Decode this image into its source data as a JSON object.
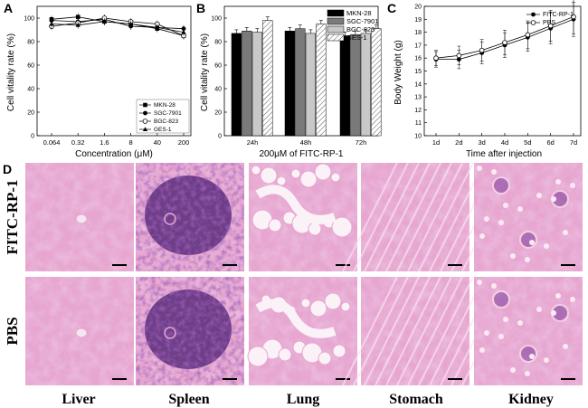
{
  "panels": {
    "a": "A",
    "b": "B",
    "c": "C",
    "d": "D"
  },
  "histology": {
    "rows": [
      "FITC-RP-1",
      "PBS"
    ],
    "columns": [
      "Liver",
      "Spleen",
      "Lung",
      "Stomach",
      "Kidney"
    ],
    "colors": {
      "pink": "#e7a6cf",
      "purple": "#7c3a9a",
      "deep": "#4c1f72",
      "light": "#f6e6f0"
    }
  },
  "chart_data": [
    {
      "type": "line",
      "panel": "A",
      "xlabel": "Concentration (μM)",
      "ylabel": "Cell vitality rate (%)",
      "categories": [
        "0.064",
        "0.32",
        "1.6",
        "8",
        "40",
        "200"
      ],
      "ylim": [
        0,
        110
      ],
      "yticks": [
        0,
        20,
        40,
        60,
        80,
        100
      ],
      "legend_position": "bottom-right",
      "series": [
        {
          "name": "MKN-28",
          "marker": "square",
          "values": [
            99,
            101,
            97,
            95,
            91,
            85
          ]
        },
        {
          "name": "SGC-7901",
          "marker": "circle",
          "values": [
            98,
            97,
            99,
            93,
            92,
            91
          ]
        },
        {
          "name": "BGC-823",
          "marker": "open-circle",
          "values": [
            93,
            96,
            100,
            97,
            95,
            85
          ]
        },
        {
          "name": "GES-1",
          "marker": "triangle",
          "values": [
            95,
            94,
            97,
            95,
            92,
            88
          ]
        }
      ]
    },
    {
      "type": "bar",
      "panel": "B",
      "xlabel": "200μM of FITC-RP-1",
      "ylabel": "Cell vitality rate (%)",
      "categories": [
        "24h",
        "48h",
        "72h"
      ],
      "ylim": [
        0,
        110
      ],
      "yticks": [
        0,
        20,
        40,
        60,
        80,
        100
      ],
      "legend_position": "top-right",
      "series": [
        {
          "name": "MKN-28",
          "fill": "#000000",
          "values": [
            87,
            89,
            85
          ]
        },
        {
          "name": "SGC-7901",
          "fill": "#7a7a7a",
          "values": [
            89,
            91,
            86
          ]
        },
        {
          "name": "BGC-823",
          "fill": "#c8c8c8",
          "values": [
            88,
            87,
            87
          ]
        },
        {
          "name": "GES-1",
          "fill": "hatched",
          "values": [
            98,
            95,
            91
          ]
        }
      ]
    },
    {
      "type": "line",
      "panel": "C",
      "xlabel": "Time after injection",
      "ylabel": "Body Weight (g)",
      "categories": [
        "1d",
        "2d",
        "3d",
        "4d",
        "5d",
        "6d",
        "7d"
      ],
      "ylim": [
        10,
        20
      ],
      "yticks": [
        10,
        11,
        12,
        13,
        14,
        15,
        16,
        17,
        18,
        19,
        20
      ],
      "legend_position": "top-right",
      "series": [
        {
          "name": "FITC-RP-1",
          "marker": "filled-circle",
          "values": [
            15.9,
            15.9,
            16.4,
            17.0,
            17.6,
            18.3,
            19.0
          ]
        },
        {
          "name": "PBS",
          "marker": "open-circle",
          "values": [
            16.0,
            16.2,
            16.6,
            17.2,
            17.8,
            18.5,
            19.2
          ]
        }
      ]
    }
  ]
}
